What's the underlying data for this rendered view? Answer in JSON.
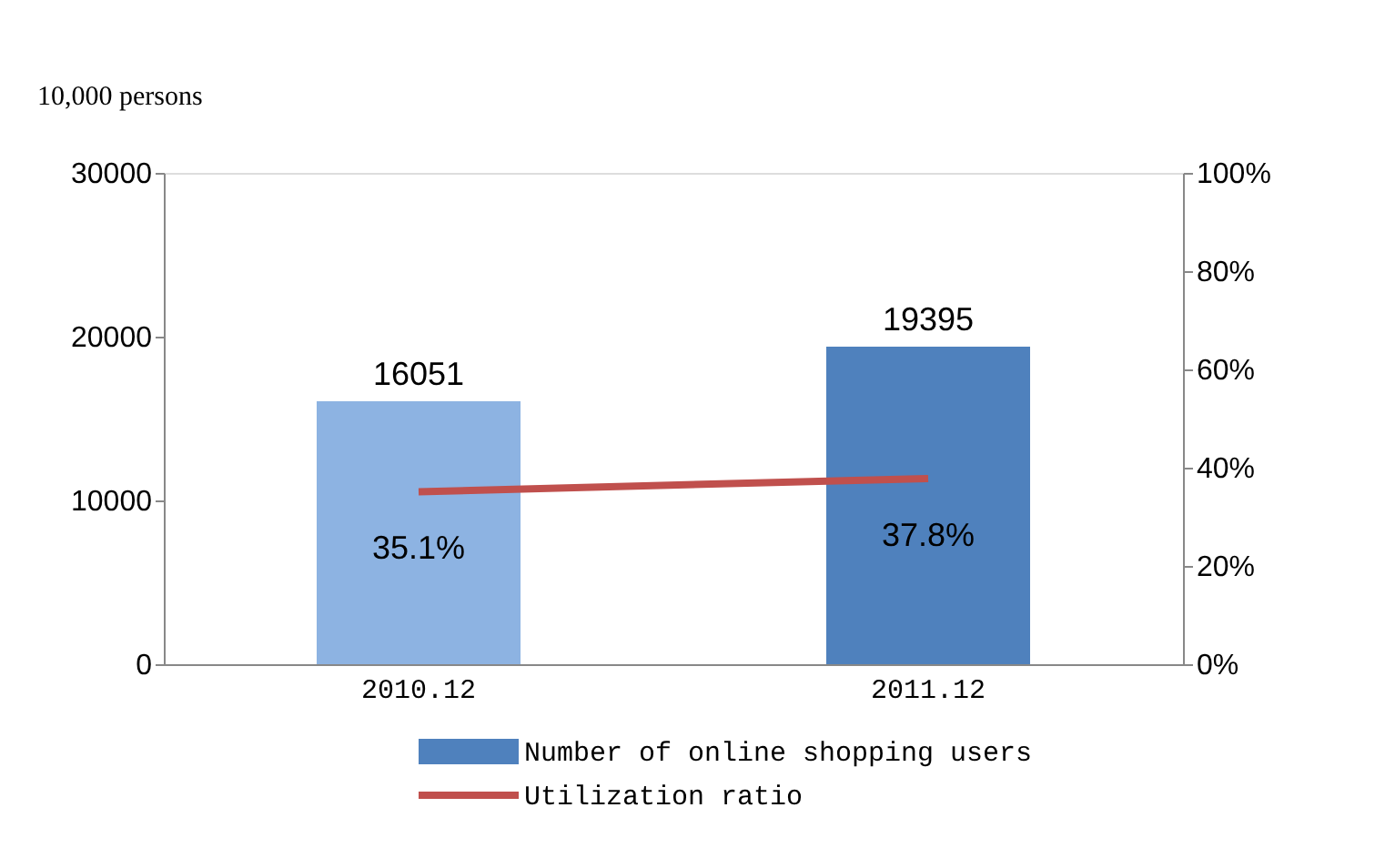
{
  "chart_data": {
    "type": "bar",
    "ylabel": "10,000 persons",
    "categories": [
      "2010.12",
      "2011.12"
    ],
    "ylim": [
      0,
      30000
    ],
    "yticks": [
      0,
      10000,
      20000,
      30000
    ],
    "y2lim": [
      0,
      100
    ],
    "y2ticks": [
      {
        "value": 0,
        "label": "0%"
      },
      {
        "value": 20,
        "label": "20%"
      },
      {
        "value": 40,
        "label": "40%"
      },
      {
        "value": 60,
        "label": "60%"
      },
      {
        "value": 80,
        "label": "80%"
      },
      {
        "value": 100,
        "label": "100%"
      }
    ],
    "legend": "bottom",
    "grid": false,
    "data_labels": true,
    "marker": "none",
    "line_style": "solid",
    "series": [
      {
        "name": "Number of online shopping users",
        "color": "#4f81bd",
        "colors": [
          "#8db3e2",
          "#4f81bd"
        ],
        "values": [
          16051,
          19395
        ]
      },
      {
        "name": "Utilization ratio",
        "type": "line",
        "axis": "y2",
        "color": "#c0504d",
        "values": [
          35.1,
          37.8
        ],
        "value_labels": [
          "35.1%",
          "37.8%"
        ]
      }
    ]
  }
}
